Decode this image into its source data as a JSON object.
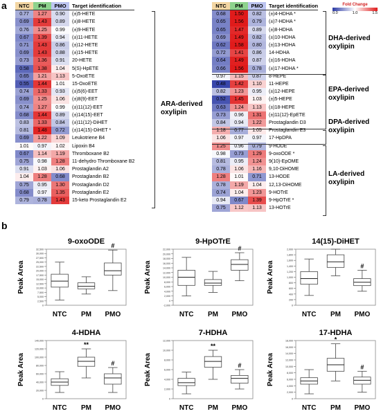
{
  "panel_a_label": "a",
  "panel_b_label": "b",
  "legend": {
    "title": "Fold Change",
    "min": "0.0",
    "mid": "1.0",
    "max": "1.5",
    "colors": {
      "low": "#2b3aa5",
      "mid": "#ffffff",
      "high": "#e01b1b"
    }
  },
  "table_headers": {
    "ntc": "NTC",
    "pm": "PM",
    "pmo": "PMO",
    "target": "Target identification",
    "colors": {
      "ntc": "#f3d6a3",
      "pm": "#8dd28d",
      "pmo": "#bcc4f0"
    }
  },
  "heatmap_left": {
    "rows": [
      {
        "ntc": "0.77",
        "pm": "1.27",
        "pmo": "0.90",
        "name": "(±)5-HETE"
      },
      {
        "ntc": "0.69",
        "pm": "1.43",
        "pmo": "0.89",
        "name": "(±)8-HETE"
      },
      {
        "ntc": "0.76",
        "pm": "1.25",
        "pmo": "0.99",
        "name": "(±)9-HETE"
      },
      {
        "ntc": "0.67",
        "pm": "1.39",
        "pmo": "0.94",
        "name": "(±)11-HETE"
      },
      {
        "ntc": "0.71",
        "pm": "1.43",
        "pmo": "0.86",
        "name": "(±)12-HETE"
      },
      {
        "ntc": "0.69",
        "pm": "1.43",
        "pmo": "0.88",
        "name": "(±)15-HETE"
      },
      {
        "ntc": "0.73",
        "pm": "1.36",
        "pmo": "0.91",
        "name": "20-HETE"
      },
      {
        "ntc": "0.58",
        "pm": "1.38",
        "pmo": "1.04",
        "name": "5(S)-HpETE"
      },
      {
        "ntc": "0.65",
        "pm": "1.21",
        "pmo": "1.13",
        "name": "5-OxoETE"
      },
      {
        "ntc": "0.55",
        "pm": "1.44",
        "pmo": "1.01",
        "name": "15-OxoETE"
      },
      {
        "ntc": "0.74",
        "pm": "1.33",
        "pmo": "0.93",
        "name": "(±)5(6)-EET"
      },
      {
        "ntc": "0.69",
        "pm": "1.25",
        "pmo": "1.06",
        "name": "(±)8(9)-EET"
      },
      {
        "ntc": "0.74",
        "pm": "1.27",
        "pmo": "0.99",
        "name": "(±)11(12)-EET"
      },
      {
        "ntc": "0.68",
        "pm": "1.44",
        "pmo": "0.89",
        "name": "(±)14(15)-EET"
      },
      {
        "ntc": "0.83",
        "pm": "1.33",
        "pmo": "0.84",
        "name": "(±)11(12)-DiHET"
      },
      {
        "ntc": "0.81",
        "pm": "1.48",
        "pmo": "0.72",
        "name": "(±)14(15)-DiHET *"
      },
      {
        "ntc": "0.69",
        "pm": "1.22",
        "pmo": "1.09",
        "name": "Leukotriene B4"
      },
      {
        "ntc": "1.01",
        "pm": "0.97",
        "pmo": "1.02",
        "name": "Lipoxin B4"
      },
      {
        "ntc": "0.67",
        "pm": "1.14",
        "pmo": "1.19",
        "name": "Thromboxane B2"
      },
      {
        "ntc": "0.75",
        "pm": "0.98",
        "pmo": "1.28",
        "name": "11-dehydro Thromboxane B2"
      },
      {
        "ntc": "0.91",
        "pm": "1.03",
        "pmo": "1.06",
        "name": "Prostaglandin A2"
      },
      {
        "ntc": "1.04",
        "pm": "1.28",
        "pmo": "0.68",
        "name": "Prostaglandin B2"
      },
      {
        "ntc": "0.75",
        "pm": "0.95",
        "pmo": "1.30",
        "name": "Prostaglandin D2"
      },
      {
        "ntc": "0.68",
        "pm": "0.97",
        "pmo": "1.35",
        "name": "Prostaglandin E2"
      },
      {
        "ntc": "0.79",
        "pm": "0.78",
        "pmo": "1.43",
        "name": "15-keto Prostaglandin E2"
      }
    ],
    "group_label": "ARA-derived oxylipin"
  },
  "heatmap_right": {
    "rows": [
      {
        "ntc": "0.68",
        "pm": "1.50",
        "pmo": "0.82",
        "name": "(±)4-HDHA *"
      },
      {
        "ntc": "0.65",
        "pm": "1.56",
        "pmo": "0.79",
        "name": "(±)7-HDHA *"
      },
      {
        "ntc": "0.65",
        "pm": "1.47",
        "pmo": "0.89",
        "name": "(±)8-HDHA"
      },
      {
        "ntc": "0.69",
        "pm": "1.49",
        "pmo": "0.82",
        "name": "(±)10-HDHA"
      },
      {
        "ntc": "0.62",
        "pm": "1.58",
        "pmo": "0.80",
        "name": "(±)13-HDHA"
      },
      {
        "ntc": "0.72",
        "pm": "1.41",
        "pmo": "0.86",
        "name": "14-HDHA"
      },
      {
        "ntc": "0.64",
        "pm": "1.49",
        "pmo": "0.87",
        "name": "(±)16-HDHA"
      },
      {
        "ntc": "0.66",
        "pm": "1.56",
        "pmo": "0.78",
        "name": "(±)17-HDHA *"
      },
      {
        "ntc": "0.97",
        "pm": "1.15",
        "pmo": "0.87",
        "name": "8-HEPE"
      },
      {
        "ntc": "0.48",
        "pm": "1.42",
        "pmo": "1.10",
        "name": "11-HEPE"
      },
      {
        "ntc": "0.82",
        "pm": "1.23",
        "pmo": "0.95",
        "name": "(±)12-HEPE"
      },
      {
        "ntc": "0.52",
        "pm": "1.45",
        "pmo": "1.03",
        "name": "(±)5-HEPE"
      },
      {
        "ntc": "0.63",
        "pm": "1.24",
        "pmo": "1.13",
        "name": "(±)18-HEPE"
      },
      {
        "ntc": "0.73",
        "pm": "0.96",
        "pmo": "1.31",
        "name": "(±)11(12)-EpETE"
      },
      {
        "ntc": "0.84",
        "pm": "0.94",
        "pmo": "1.22",
        "name": "Prostaglandin D3"
      },
      {
        "ntc": "1.18",
        "pm": "0.77",
        "pmo": "1.05",
        "name": "Prostaglandin E3"
      },
      {
        "ntc": "1.06",
        "pm": "0.97",
        "pmo": "0.97",
        "name": "17-HpDPA"
      },
      {
        "ntc": "1.25",
        "pm": "0.96",
        "pmo": "0.79",
        "name": "9-HODE"
      },
      {
        "ntc": "0.98",
        "pm": "0.73",
        "pmo": "1.29",
        "name": "9-oxoODE *"
      },
      {
        "ntc": "0.81",
        "pm": "0.95",
        "pmo": "1.24",
        "name": "9(10)-EpOME"
      },
      {
        "ntc": "0.78",
        "pm": "1.06",
        "pmo": "1.16",
        "name": "9,10-DiHOME"
      },
      {
        "ntc": "1.28",
        "pm": "1.01",
        "pmo": "0.71",
        "name": "13-HODE"
      },
      {
        "ntc": "0.78",
        "pm": "1.19",
        "pmo": "1.04",
        "name": "12,13-DiHOME"
      },
      {
        "ntc": "0.74",
        "pm": "1.04",
        "pmo": "1.23",
        "name": "9-HOTrE"
      },
      {
        "ntc": "0.94",
        "pm": "0.67",
        "pmo": "1.39",
        "name": "9-HpOTrE *"
      },
      {
        "ntc": "0.75",
        "pm": "1.12",
        "pmo": "1.13",
        "name": "13-HOTrE"
      }
    ],
    "groups": [
      "DHA-derived oxylipin",
      "EPA-derived oxylipin",
      "DPA-derived oxylipin",
      "LA-derived oxylipin"
    ]
  },
  "chart_data": [
    {
      "type": "box",
      "title": "9-oxoODE",
      "ylabel": "Peak Area",
      "categories": [
        "NTC",
        "PM",
        "PMO"
      ],
      "yticks": [
        "0",
        "2,500",
        "5,000",
        "7,500",
        "10,000",
        "12,500",
        "15,000",
        "17,500",
        "20,000",
        "22,500",
        "25,000",
        "27,500",
        "30,000",
        "32,500"
      ],
      "ylim": [
        0,
        32500
      ],
      "boxes": [
        {
          "min": 3000,
          "q1": 10500,
          "median": 14000,
          "q3": 18000,
          "max": 25000
        },
        {
          "min": 6500,
          "q1": 9500,
          "median": 11000,
          "q3": 13000,
          "max": 16500
        },
        {
          "min": 8500,
          "q1": 17500,
          "median": 20000,
          "q3": 24500,
          "max": 32000
        }
      ],
      "markers": [
        "",
        "",
        "#"
      ]
    },
    {
      "type": "box",
      "title": "9-HpOTrE",
      "ylabel": "Peak Area",
      "categories": [
        "NTC",
        "PM",
        "PMO"
      ],
      "yticks": [
        "-2,000",
        "0",
        "2,000",
        "4,000",
        "6,000",
        "8,000",
        "10,000",
        "12,000",
        "14,000",
        "16,000",
        "18,000",
        "20,000",
        "22,000"
      ],
      "ylim": [
        -2000,
        22000
      ],
      "boxes": [
        {
          "min": 2000,
          "q1": 6500,
          "median": 10000,
          "q3": 13000,
          "max": 18500
        },
        {
          "min": 3500,
          "q1": 6500,
          "median": 7500,
          "q3": 9000,
          "max": 12500
        },
        {
          "min": 8500,
          "q1": 13000,
          "median": 15500,
          "q3": 17500,
          "max": 20500
        }
      ],
      "markers": [
        "",
        "",
        "#"
      ]
    },
    {
      "type": "box",
      "title": "14(15)-DiHET",
      "ylabel": "Peak Area",
      "categories": [
        "NTC",
        "PM",
        "PMO"
      ],
      "yticks": [
        "0",
        "200",
        "400",
        "600",
        "800",
        "1,000",
        "1,200",
        "1,400",
        "1,600",
        "1,800",
        "2,000"
      ],
      "ylim": [
        0,
        2000
      ],
      "boxes": [
        {
          "min": 350,
          "q1": 750,
          "median": 950,
          "q3": 1200,
          "max": 1650
        },
        {
          "min": 1050,
          "q1": 1350,
          "median": 1550,
          "q3": 1800,
          "max": 2000
        },
        {
          "min": 500,
          "q1": 700,
          "median": 820,
          "q3": 950,
          "max": 1250
        }
      ],
      "markers": [
        "",
        "",
        "#"
      ]
    },
    {
      "type": "box",
      "title": "4-HDHA",
      "ylabel": "Peak Area",
      "categories": [
        "NTC",
        "PM",
        "PMO"
      ],
      "yticks": [
        "0",
        "20,000",
        "40,000",
        "60,000",
        "80,000",
        "100,000",
        "120,000",
        "140,000"
      ],
      "ylim": [
        0,
        140000
      ],
      "boxes": [
        {
          "min": 15000,
          "q1": 32000,
          "median": 40000,
          "q3": 48000,
          "max": 65000
        },
        {
          "min": 50000,
          "q1": 78000,
          "median": 90000,
          "q3": 100000,
          "max": 120000
        },
        {
          "min": 15000,
          "q1": 35000,
          "median": 50000,
          "q3": 60000,
          "max": 75000
        }
      ],
      "markers": [
        "",
        "**",
        "#"
      ]
    },
    {
      "type": "box",
      "title": "7-HDHA",
      "ylabel": "Peak Area",
      "categories": [
        "NTC",
        "PM",
        "PMO"
      ],
      "yticks": [
        "0",
        "2,000",
        "4,000",
        "6,000",
        "8,000",
        "10,000",
        "12,000"
      ],
      "ylim": [
        0,
        12000
      ],
      "boxes": [
        {
          "min": 1000,
          "q1": 2700,
          "median": 3300,
          "q3": 4200,
          "max": 5500
        },
        {
          "min": 4000,
          "q1": 6500,
          "median": 7700,
          "q3": 8700,
          "max": 10000
        },
        {
          "min": 2000,
          "q1": 3200,
          "median": 4200,
          "q3": 4800,
          "max": 6000
        }
      ],
      "markers": [
        "",
        "**",
        "#"
      ]
    },
    {
      "type": "box",
      "title": "17-HDHA",
      "ylabel": "Peak Area",
      "categories": [
        "NTC",
        "PM",
        "PMO"
      ],
      "yticks": [
        "0",
        "2,000",
        "4,000",
        "6,000",
        "8,000",
        "10,000",
        "12,000",
        "14,000",
        "16,000",
        "18,000"
      ],
      "ylim": [
        0,
        18000
      ],
      "boxes": [
        {
          "min": 1500,
          "q1": 4500,
          "median": 5500,
          "q3": 6500,
          "max": 9000
        },
        {
          "min": 5500,
          "q1": 8500,
          "median": 10500,
          "q3": 12500,
          "max": 17000
        },
        {
          "min": 2000,
          "q1": 4500,
          "median": 5700,
          "q3": 6700,
          "max": 8500
        }
      ],
      "markers": [
        "",
        "*",
        "#"
      ]
    }
  ]
}
